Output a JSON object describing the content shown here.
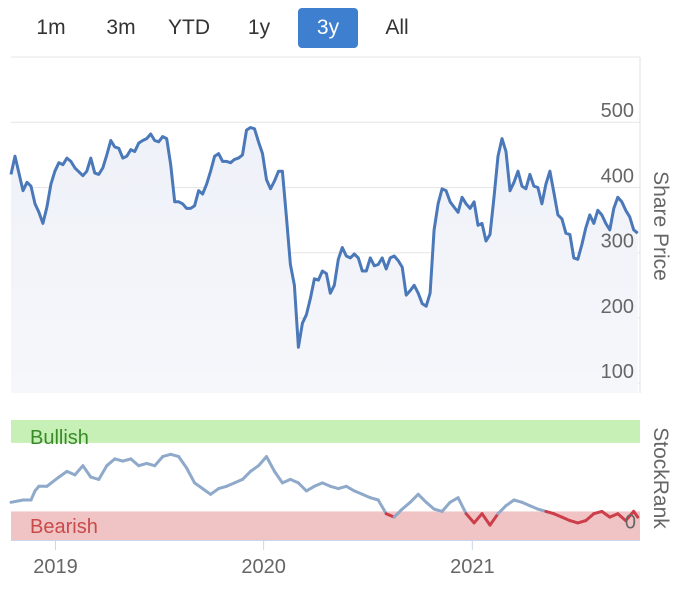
{
  "range_buttons": [
    {
      "label": "1m",
      "active": false
    },
    {
      "label": "3m",
      "active": false
    },
    {
      "label": "YTD",
      "active": false
    },
    {
      "label": "1y",
      "active": false
    },
    {
      "label": "3y",
      "active": true
    },
    {
      "label": "All",
      "active": false
    }
  ],
  "colors": {
    "price_line": "#4a78b8",
    "rank_line": "#8ea9c9",
    "rank_bearish_line": "#cc3e4a",
    "bullish_band": "#c6f0b6",
    "bullish_text": "#3a8a2a",
    "bearish_band": "#f0c4c4",
    "bearish_text": "#c84a4a",
    "active_button": "#3f7fd0"
  },
  "chart_data": [
    {
      "type": "line",
      "ylabel": "Share Price",
      "yticks": [
        100,
        200,
        300,
        400,
        500
      ],
      "ylim": [
        85,
        600
      ],
      "x_start": "2018-10-15",
      "x_end": "2021-10-22",
      "grid": true,
      "series": [
        {
          "values": [
            [
              "2018-10-15",
              420
            ],
            [
              "2018-10-22",
              448
            ],
            [
              "2018-11-05",
              395
            ],
            [
              "2018-11-12",
              408
            ],
            [
              "2018-11-19",
              402
            ],
            [
              "2018-11-26",
              375
            ],
            [
              "2018-12-03",
              362
            ],
            [
              "2018-12-10",
              345
            ],
            [
              "2018-12-17",
              370
            ],
            [
              "2018-12-24",
              405
            ],
            [
              "2018-12-31",
              425
            ],
            [
              "2019-01-07",
              438
            ],
            [
              "2019-01-14",
              435
            ],
            [
              "2019-01-21",
              445
            ],
            [
              "2019-01-28",
              440
            ],
            [
              "2019-02-04",
              430
            ],
            [
              "2019-02-18",
              418
            ],
            [
              "2019-02-25",
              425
            ],
            [
              "2019-03-04",
              445
            ],
            [
              "2019-03-11",
              422
            ],
            [
              "2019-03-18",
              420
            ],
            [
              "2019-03-25",
              430
            ],
            [
              "2019-04-01",
              450
            ],
            [
              "2019-04-08",
              472
            ],
            [
              "2019-04-15",
              462
            ],
            [
              "2019-04-22",
              460
            ],
            [
              "2019-04-29",
              445
            ],
            [
              "2019-05-06",
              448
            ],
            [
              "2019-05-13",
              458
            ],
            [
              "2019-05-20",
              455
            ],
            [
              "2019-05-27",
              468
            ],
            [
              "2019-06-03",
              472
            ],
            [
              "2019-06-10",
              475
            ],
            [
              "2019-06-17",
              482
            ],
            [
              "2019-06-24",
              472
            ],
            [
              "2019-07-01",
              470
            ],
            [
              "2019-07-08",
              478
            ],
            [
              "2019-07-15",
              475
            ],
            [
              "2019-07-22",
              435
            ],
            [
              "2019-07-29",
              378
            ],
            [
              "2019-08-05",
              378
            ],
            [
              "2019-08-12",
              375
            ],
            [
              "2019-08-19",
              368
            ],
            [
              "2019-08-26",
              368
            ],
            [
              "2019-09-02",
              372
            ],
            [
              "2019-09-09",
              395
            ],
            [
              "2019-09-16",
              390
            ],
            [
              "2019-09-23",
              405
            ],
            [
              "2019-09-30",
              425
            ],
            [
              "2019-10-07",
              448
            ],
            [
              "2019-10-14",
              452
            ],
            [
              "2019-10-21",
              440
            ],
            [
              "2019-10-28",
              440
            ],
            [
              "2019-11-04",
              438
            ],
            [
              "2019-11-11",
              443
            ],
            [
              "2019-11-18",
              445
            ],
            [
              "2019-11-25",
              450
            ],
            [
              "2019-12-02",
              488
            ],
            [
              "2019-12-09",
              492
            ],
            [
              "2019-12-16",
              490
            ],
            [
              "2019-12-23",
              470
            ],
            [
              "2019-12-30",
              452
            ],
            [
              "2020-01-06",
              412
            ],
            [
              "2020-01-13",
              398
            ],
            [
              "2020-01-20",
              410
            ],
            [
              "2020-01-27",
              425
            ],
            [
              "2020-02-03",
              425
            ],
            [
              "2020-02-10",
              355
            ],
            [
              "2020-02-17",
              282
            ],
            [
              "2020-02-24",
              250
            ],
            [
              "2020-03-02",
              155
            ],
            [
              "2020-03-09",
              192
            ],
            [
              "2020-03-16",
              205
            ],
            [
              "2020-03-23",
              230
            ],
            [
              "2020-03-30",
              260
            ],
            [
              "2020-04-06",
              258
            ],
            [
              "2020-04-13",
              272
            ],
            [
              "2020-04-20",
              268
            ],
            [
              "2020-04-27",
              238
            ],
            [
              "2020-05-04",
              250
            ],
            [
              "2020-05-11",
              290
            ],
            [
              "2020-05-18",
              308
            ],
            [
              "2020-05-25",
              295
            ],
            [
              "2020-06-01",
              292
            ],
            [
              "2020-06-08",
              298
            ],
            [
              "2020-06-15",
              292
            ],
            [
              "2020-06-22",
              272
            ],
            [
              "2020-06-29",
              272
            ],
            [
              "2020-07-06",
              292
            ],
            [
              "2020-07-13",
              280
            ],
            [
              "2020-07-20",
              282
            ],
            [
              "2020-07-27",
              292
            ],
            [
              "2020-08-03",
              275
            ],
            [
              "2020-08-10",
              292
            ],
            [
              "2020-08-17",
              295
            ],
            [
              "2020-08-24",
              288
            ],
            [
              "2020-08-31",
              278
            ],
            [
              "2020-09-07",
              235
            ],
            [
              "2020-09-14",
              242
            ],
            [
              "2020-09-21",
              250
            ],
            [
              "2020-09-28",
              238
            ],
            [
              "2020-10-05",
              222
            ],
            [
              "2020-10-12",
              218
            ],
            [
              "2020-10-19",
              238
            ],
            [
              "2020-10-26",
              335
            ],
            [
              "2020-11-02",
              375
            ],
            [
              "2020-11-09",
              398
            ],
            [
              "2020-11-16",
              395
            ],
            [
              "2020-11-23",
              378
            ],
            [
              "2020-11-30",
              370
            ],
            [
              "2020-12-07",
              362
            ],
            [
              "2020-12-14",
              385
            ],
            [
              "2020-12-21",
              375
            ],
            [
              "2020-12-28",
              368
            ],
            [
              "2021-01-04",
              378
            ],
            [
              "2021-01-11",
              342
            ],
            [
              "2021-01-18",
              345
            ],
            [
              "2021-01-25",
              318
            ],
            [
              "2021-02-01",
              328
            ],
            [
              "2021-02-08",
              385
            ],
            [
              "2021-02-15",
              448
            ],
            [
              "2021-02-22",
              475
            ],
            [
              "2021-03-01",
              455
            ],
            [
              "2021-03-08",
              395
            ],
            [
              "2021-03-15",
              408
            ],
            [
              "2021-03-22",
              425
            ],
            [
              "2021-03-29",
              402
            ],
            [
              "2021-04-05",
              398
            ],
            [
              "2021-04-12",
              420
            ],
            [
              "2021-04-19",
              402
            ],
            [
              "2021-04-26",
              400
            ],
            [
              "2021-05-03",
              375
            ],
            [
              "2021-05-10",
              405
            ],
            [
              "2021-05-17",
              425
            ],
            [
              "2021-05-24",
              392
            ],
            [
              "2021-05-31",
              358
            ],
            [
              "2021-06-07",
              352
            ],
            [
              "2021-06-14",
              330
            ],
            [
              "2021-06-21",
              328
            ],
            [
              "2021-06-28",
              292
            ],
            [
              "2021-07-05",
              290
            ],
            [
              "2021-07-12",
              312
            ],
            [
              "2021-07-19",
              338
            ],
            [
              "2021-07-26",
              358
            ],
            [
              "2021-08-02",
              345
            ],
            [
              "2021-08-09",
              365
            ],
            [
              "2021-08-16",
              358
            ],
            [
              "2021-08-23",
              345
            ],
            [
              "2021-08-30",
              335
            ],
            [
              "2021-09-06",
              368
            ],
            [
              "2021-09-13",
              385
            ],
            [
              "2021-09-20",
              378
            ],
            [
              "2021-09-27",
              365
            ],
            [
              "2021-10-04",
              355
            ],
            [
              "2021-10-11",
              335
            ],
            [
              "2021-10-18",
              330
            ]
          ]
        }
      ]
    },
    {
      "type": "line",
      "ylabel": "StockRank",
      "yticks": [
        0
      ],
      "ylim": [
        -5,
        100
      ],
      "bands": [
        {
          "label": "Bullish",
          "from": 80,
          "to": 100
        },
        {
          "label": "Bearish",
          "from": -5,
          "to": 20
        }
      ],
      "xticks": [
        "2019",
        "2020",
        "2021"
      ],
      "bearish_threshold": 20,
      "series": [
        {
          "values": [
            [
              "2018-10-15",
              28
            ],
            [
              "2018-11-05",
              30
            ],
            [
              "2018-11-19",
              30
            ],
            [
              "2018-11-26",
              38
            ],
            [
              "2018-12-03",
              42
            ],
            [
              "2018-12-17",
              42
            ],
            [
              "2019-01-07",
              50
            ],
            [
              "2019-01-21",
              55
            ],
            [
              "2019-02-04",
              52
            ],
            [
              "2019-02-18",
              60
            ],
            [
              "2019-03-04",
              50
            ],
            [
              "2019-03-18",
              48
            ],
            [
              "2019-04-01",
              60
            ],
            [
              "2019-04-15",
              66
            ],
            [
              "2019-04-29",
              64
            ],
            [
              "2019-05-13",
              66
            ],
            [
              "2019-05-27",
              60
            ],
            [
              "2019-06-10",
              62
            ],
            [
              "2019-06-24",
              60
            ],
            [
              "2019-07-08",
              68
            ],
            [
              "2019-07-22",
              70
            ],
            [
              "2019-08-05",
              68
            ],
            [
              "2019-08-19",
              58
            ],
            [
              "2019-09-02",
              45
            ],
            [
              "2019-09-16",
              40
            ],
            [
              "2019-09-30",
              35
            ],
            [
              "2019-10-14",
              40
            ],
            [
              "2019-10-28",
              42
            ],
            [
              "2019-11-11",
              45
            ],
            [
              "2019-11-25",
              48
            ],
            [
              "2019-12-09",
              55
            ],
            [
              "2019-12-23",
              60
            ],
            [
              "2020-01-06",
              68
            ],
            [
              "2020-01-20",
              55
            ],
            [
              "2020-02-03",
              45
            ],
            [
              "2020-02-17",
              48
            ],
            [
              "2020-03-02",
              45
            ],
            [
              "2020-03-16",
              38
            ],
            [
              "2020-03-30",
              42
            ],
            [
              "2020-04-13",
              45
            ],
            [
              "2020-04-27",
              42
            ],
            [
              "2020-05-11",
              40
            ],
            [
              "2020-05-25",
              42
            ],
            [
              "2020-06-08",
              38
            ],
            [
              "2020-06-22",
              35
            ],
            [
              "2020-07-06",
              32
            ],
            [
              "2020-07-20",
              30
            ],
            [
              "2020-08-03",
              18
            ],
            [
              "2020-08-17",
              15
            ],
            [
              "2020-08-31",
              22
            ],
            [
              "2020-09-14",
              28
            ],
            [
              "2020-09-28",
              35
            ],
            [
              "2020-10-12",
              28
            ],
            [
              "2020-10-26",
              22
            ],
            [
              "2020-11-09",
              20
            ],
            [
              "2020-11-23",
              28
            ],
            [
              "2020-12-07",
              32
            ],
            [
              "2020-12-21",
              18
            ],
            [
              "2021-01-04",
              10
            ],
            [
              "2021-01-18",
              18
            ],
            [
              "2021-02-01",
              8
            ],
            [
              "2021-02-15",
              18
            ],
            [
              "2021-03-01",
              25
            ],
            [
              "2021-03-15",
              30
            ],
            [
              "2021-03-29",
              28
            ],
            [
              "2021-04-12",
              25
            ],
            [
              "2021-04-26",
              22
            ],
            [
              "2021-05-10",
              20
            ],
            [
              "2021-05-24",
              18
            ],
            [
              "2021-06-07",
              15
            ],
            [
              "2021-06-21",
              12
            ],
            [
              "2021-07-05",
              10
            ],
            [
              "2021-07-19",
              12
            ],
            [
              "2021-08-02",
              18
            ],
            [
              "2021-08-16",
              20
            ],
            [
              "2021-08-30",
              15
            ],
            [
              "2021-09-13",
              18
            ],
            [
              "2021-09-27",
              12
            ],
            [
              "2021-10-11",
              20
            ],
            [
              "2021-10-18",
              15
            ]
          ]
        }
      ]
    }
  ]
}
